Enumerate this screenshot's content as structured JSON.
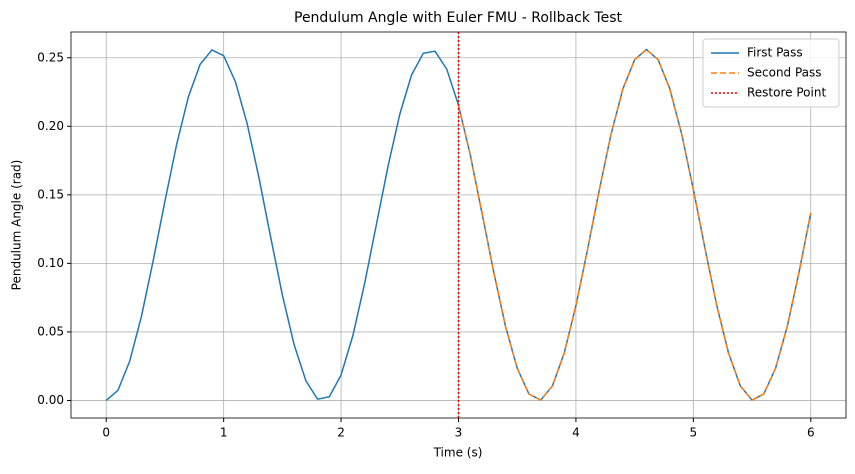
{
  "chart_data": {
    "type": "line",
    "title": "Pendulum Angle with Euler FMU - Rollback Test",
    "x_label": "Time (s)",
    "y_label": "Pendulum Angle (rad)",
    "xlim": [
      -0.3,
      6.3
    ],
    "ylim": [
      -0.0128,
      0.2688
    ],
    "xticks": [
      0,
      1,
      2,
      3,
      4,
      5,
      6
    ],
    "yticks": [
      {
        "value": 0,
        "label": "0.00"
      },
      {
        "value": 0.05,
        "label": "0.05"
      },
      {
        "value": 0.1,
        "label": "0.10"
      },
      {
        "value": 0.15,
        "label": "0.15"
      },
      {
        "value": 0.2,
        "label": "0.20"
      },
      {
        "value": 0.25,
        "label": "0.25"
      }
    ],
    "grid": true,
    "legend": "upper right",
    "series": [
      {
        "name": "First Pass",
        "color": "#1f77b4",
        "dash": "solid",
        "x": [
          0,
          0.1,
          0.2,
          0.3,
          0.4,
          0.5,
          0.6,
          0.7,
          0.8,
          0.9,
          1,
          1.1,
          1.2,
          1.3,
          1.4,
          1.5,
          1.6,
          1.7,
          1.8,
          1.9,
          2,
          2.1,
          2.2,
          2.3,
          2.4,
          2.5,
          2.6,
          2.7,
          2.8,
          2.9,
          3,
          3.1,
          3.2,
          3.3,
          3.4,
          3.5,
          3.6,
          3.7,
          3.8,
          3.9,
          4,
          4.1,
          4.2,
          4.3,
          4.4,
          4.5,
          4.6,
          4.7,
          4.8,
          4.9,
          5,
          5.1,
          5.2,
          5.3,
          5.4,
          5.5,
          5.6,
          5.7,
          5.8,
          5.9,
          6
        ],
        "values": [
          0,
          0.0074,
          0.0287,
          0.0614,
          0.102,
          0.1454,
          0.1869,
          0.2216,
          0.2453,
          0.2557,
          0.2515,
          0.2326,
          0.202,
          0.1628,
          0.1193,
          0.077,
          0.0407,
          0.0144,
          0.0009,
          0.0027,
          0.0186,
          0.0472,
          0.0851,
          0.128,
          0.1709,
          0.2088,
          0.2374,
          0.2533,
          0.2548,
          0.2417,
          0.2154,
          0.1793,
          0.1367,
          0.0937,
          0.0542,
          0.0235,
          0.0047,
          0.0003,
          0.0106,
          0.0345,
          0.0691,
          0.1106,
          0.154,
          0.1945,
          0.2273,
          0.2486,
          0.256,
          0.2486,
          0.2273,
          0.1945,
          0.154,
          0.1106,
          0.0691,
          0.0345,
          0.0106,
          0.0003,
          0.0047,
          0.0234,
          0.0541,
          0.0935,
          0.1368
        ]
      },
      {
        "name": "Second Pass",
        "color": "#ff7f0e",
        "dash": "dashed",
        "x": [
          3,
          3.1,
          3.2,
          3.3,
          3.4,
          3.5,
          3.6,
          3.7,
          3.8,
          3.9,
          4,
          4.1,
          4.2,
          4.3,
          4.4,
          4.5,
          4.6,
          4.7,
          4.8,
          4.9,
          5,
          5.1,
          5.2,
          5.3,
          5.4,
          5.5,
          5.6,
          5.7,
          5.8,
          5.9,
          6
        ],
        "values": [
          0.2154,
          0.1793,
          0.1367,
          0.0937,
          0.0542,
          0.0235,
          0.0047,
          0.0003,
          0.0106,
          0.0345,
          0.0691,
          0.1106,
          0.154,
          0.1945,
          0.2273,
          0.2486,
          0.256,
          0.2486,
          0.2273,
          0.1945,
          0.154,
          0.1106,
          0.0691,
          0.0345,
          0.0106,
          0.0003,
          0.0047,
          0.0234,
          0.0541,
          0.0935,
          0.1368
        ]
      }
    ],
    "vline": {
      "name": "Restore Point",
      "color": "red",
      "dash": "dotted",
      "x": 3
    }
  }
}
